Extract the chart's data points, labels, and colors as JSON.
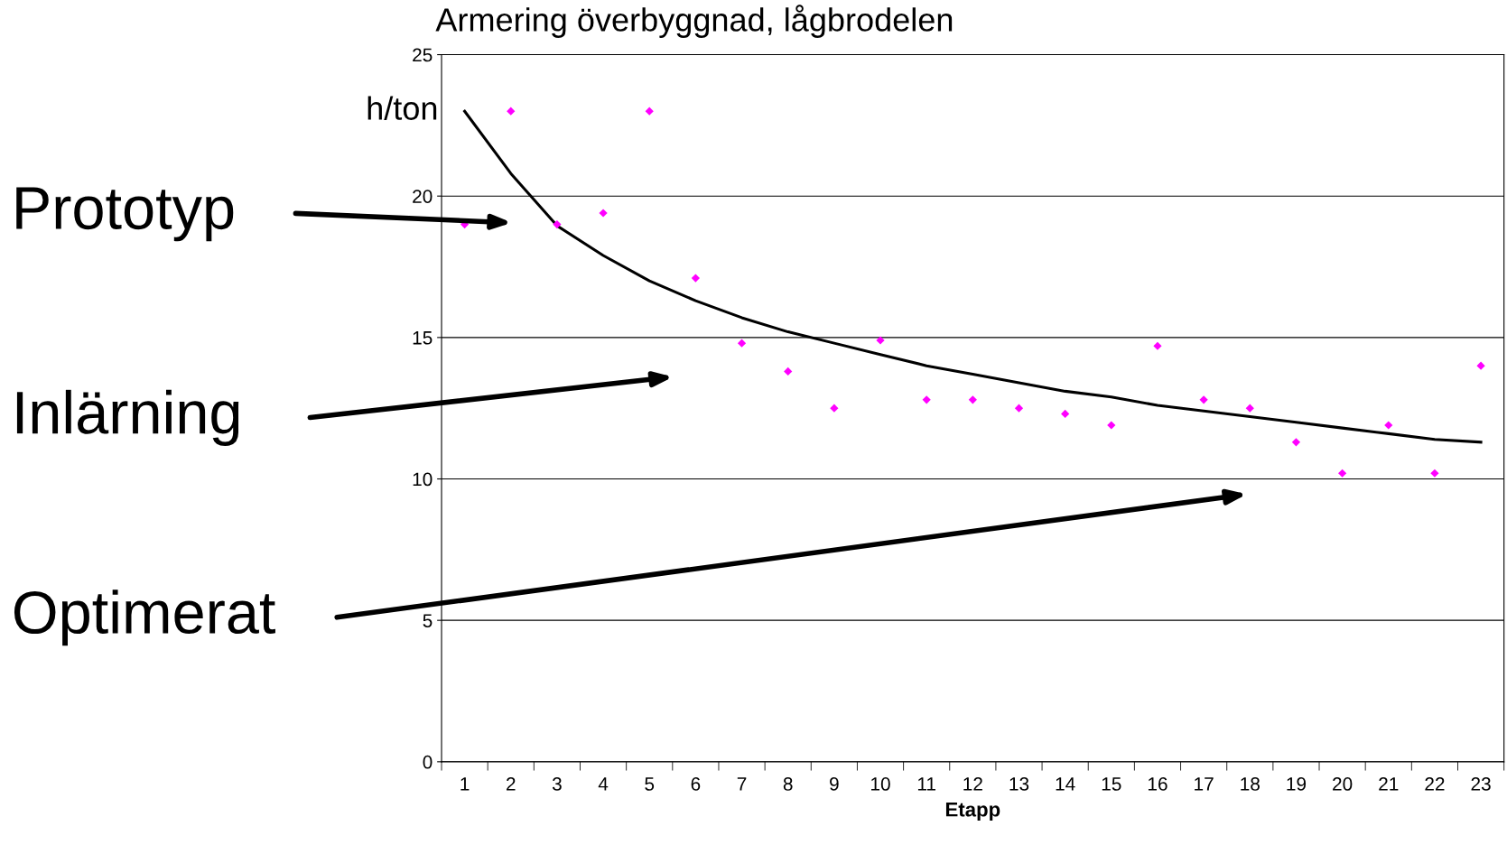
{
  "chart_data": {
    "type": "scatter",
    "title": "Armering överbyggnad, lågbrodelen",
    "xlabel": "Etapp",
    "ylabel": "h/ton",
    "categories": [
      "1",
      "2",
      "3",
      "4",
      "5",
      "6",
      "7",
      "8",
      "9",
      "10",
      "11",
      "12",
      "13",
      "14",
      "15",
      "16",
      "17",
      "18",
      "19",
      "20",
      "21",
      "22",
      "23"
    ],
    "series": [
      {
        "color": "#ff00ff",
        "marker": "diamond",
        "values": [
          19,
          23,
          19,
          19.4,
          23,
          17.1,
          14.8,
          13.8,
          12.5,
          14.9,
          12.8,
          12.8,
          12.5,
          12.3,
          11.9,
          14.7,
          12.8,
          12.5,
          11.3,
          10.2,
          11.9,
          10.2,
          14.0
        ]
      },
      {
        "type": "line",
        "color": "#000000",
        "line_style": "solid",
        "marker": "none",
        "x": [
          "1",
          "2",
          "3",
          "4",
          "5",
          "6",
          "7",
          "8",
          "9",
          "10",
          "11",
          "12",
          "13",
          "14",
          "15",
          "16",
          "17",
          "18",
          "19",
          "20",
          "21",
          "22",
          "23"
        ],
        "values": [
          23.0,
          20.8,
          18.95,
          17.9,
          17.0,
          16.3,
          15.7,
          15.2,
          14.8,
          14.4,
          14.0,
          13.7,
          13.4,
          13.1,
          12.9,
          12.6,
          12.4,
          12.2,
          12.0,
          11.8,
          11.6,
          11.4,
          11.3
        ]
      }
    ],
    "ylim": [
      0,
      25
    ],
    "yticks": [
      0,
      5,
      10,
      15,
      20,
      25
    ],
    "grid": "y",
    "annotations": [
      "Prototyp",
      "Inlärning",
      "Optimerat"
    ]
  }
}
